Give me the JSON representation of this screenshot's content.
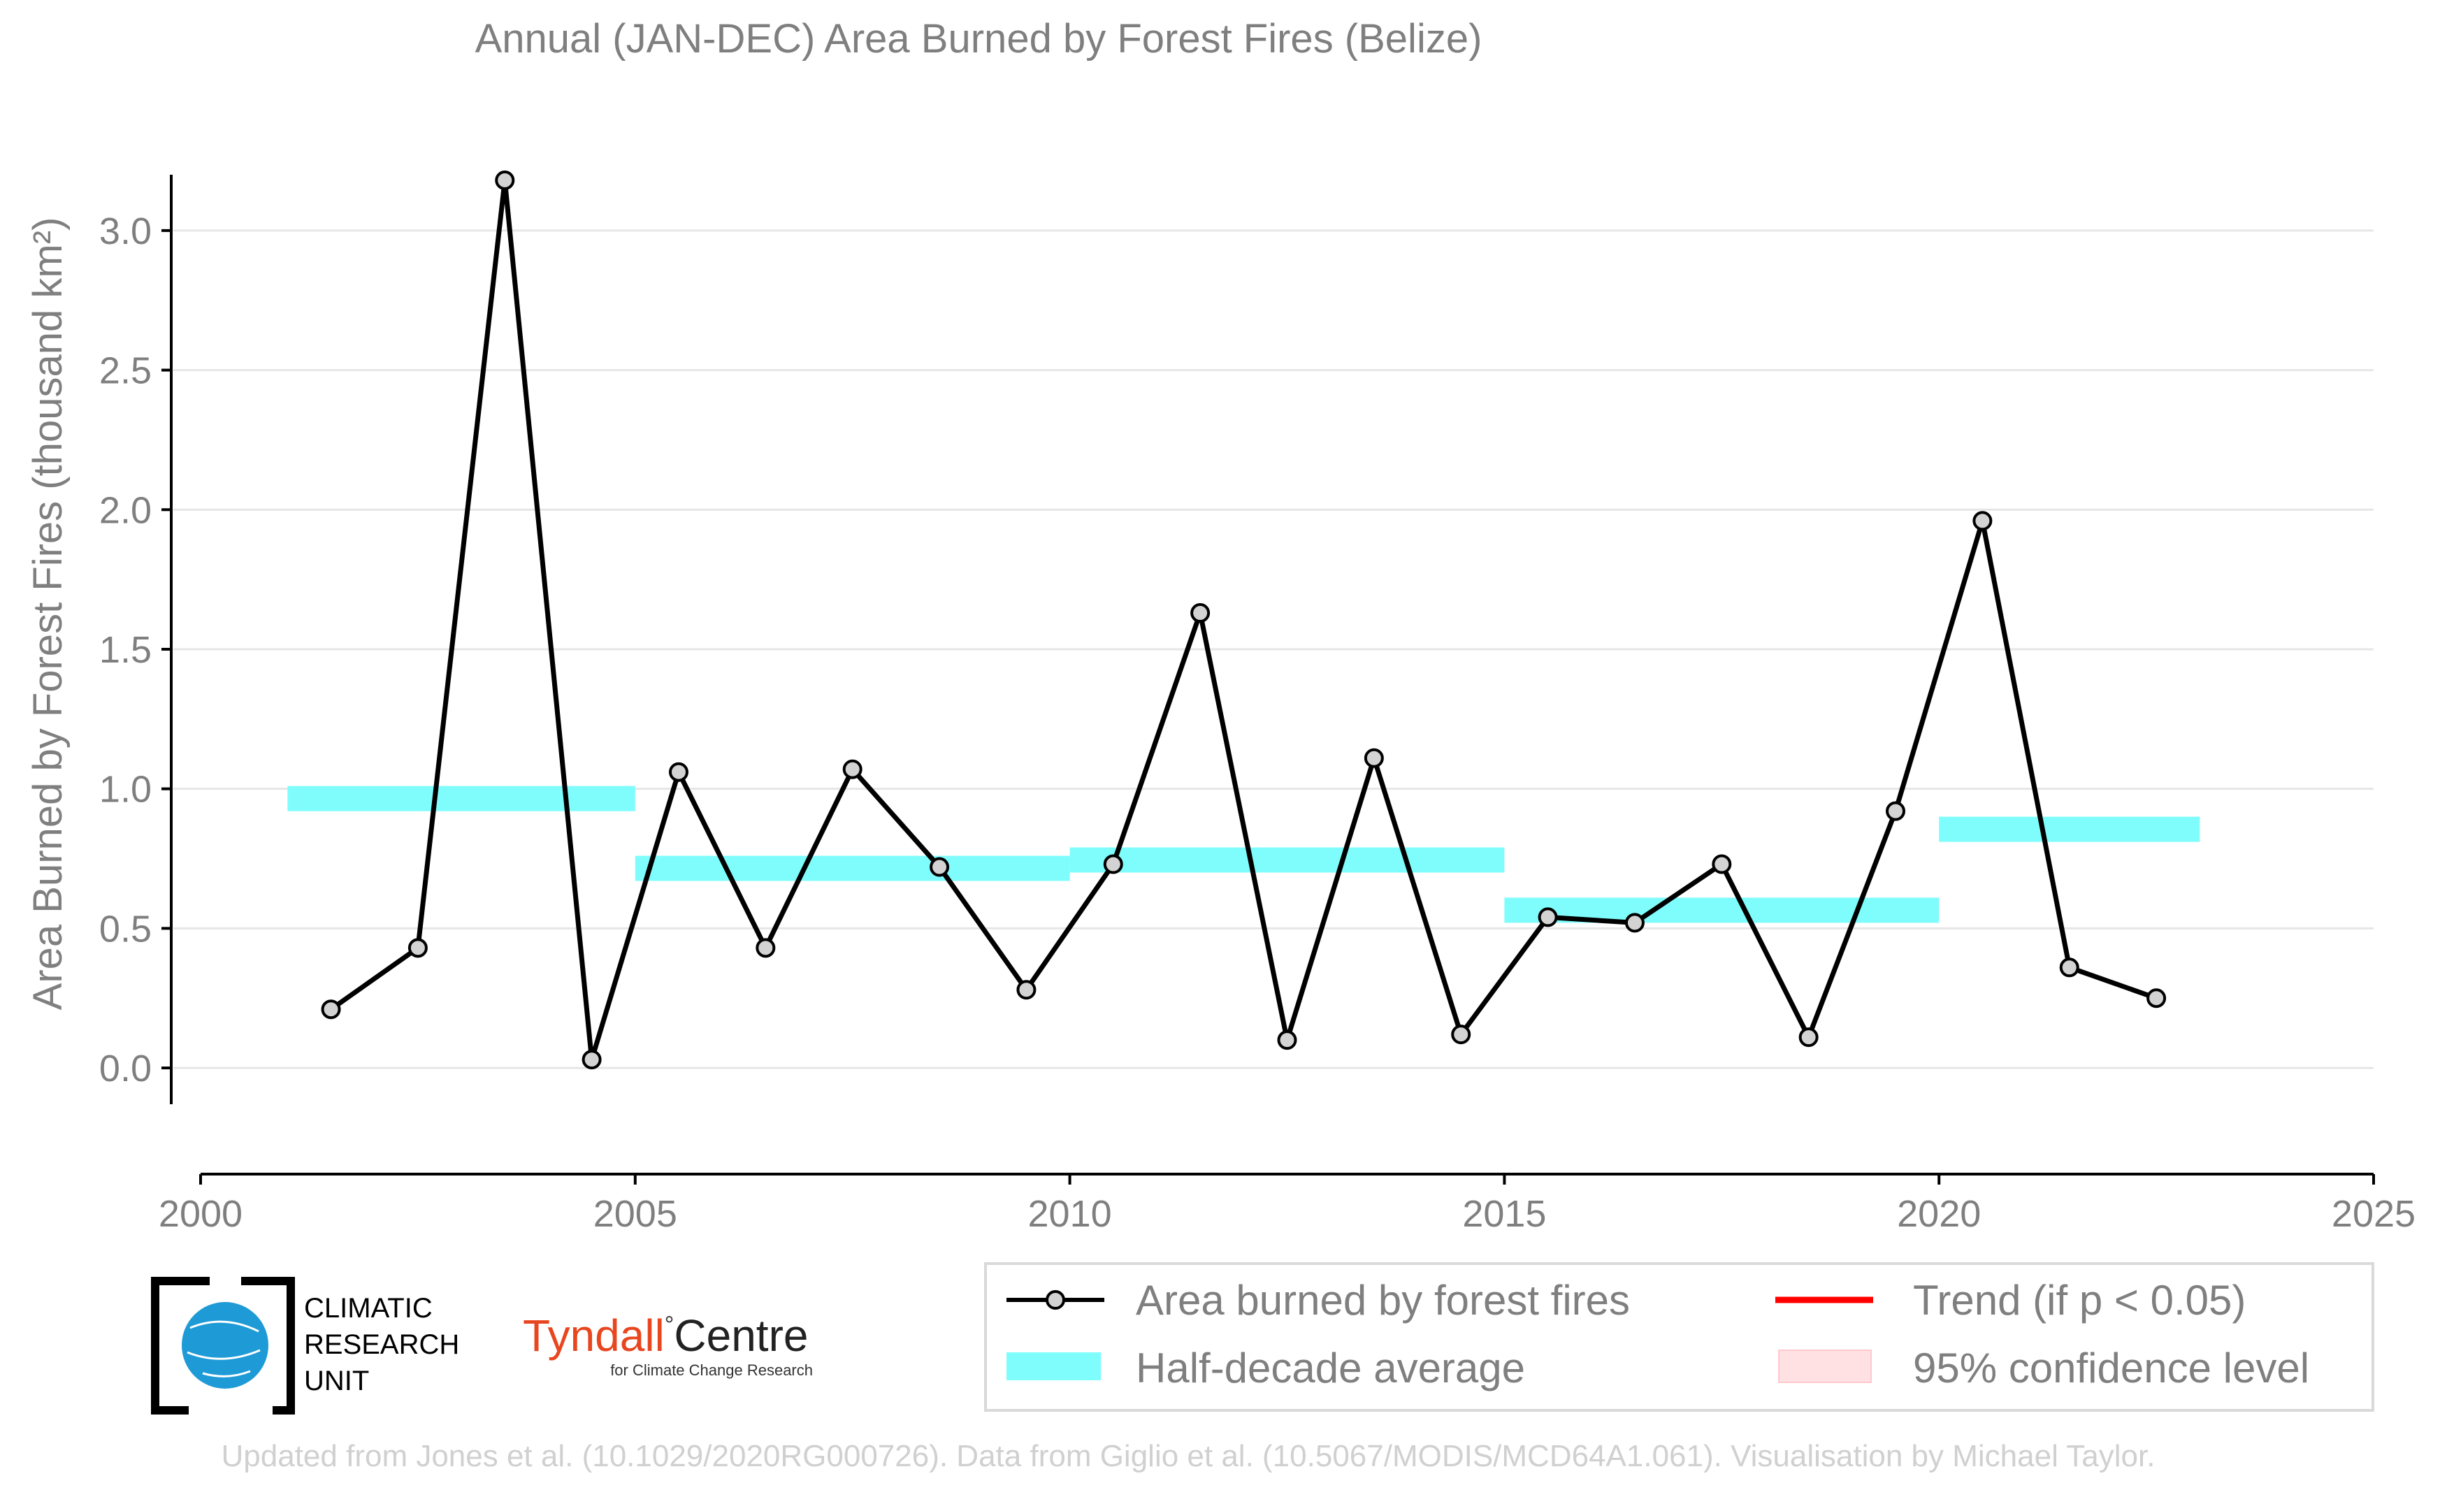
{
  "chart_data": {
    "type": "line",
    "title": "Annual (JAN-DEC) Area Burned by Forest Fires (Belize)",
    "ylabel": "Area Burned by Forest Fires (thousand km²)",
    "xlim": [
      2000,
      2025
    ],
    "ylim": [
      -0.13,
      3.2
    ],
    "x_ticks": [
      2000,
      2005,
      2010,
      2015,
      2020,
      2025
    ],
    "y_ticks": [
      0.0,
      0.5,
      1.0,
      1.5,
      2.0,
      2.5,
      3.0
    ],
    "y_tick_labels": [
      "0.0",
      "0.5",
      "1.0",
      "1.5",
      "2.0",
      "2.5",
      "3.0"
    ],
    "grid": true,
    "series": [
      {
        "name": "Area burned by forest fires",
        "color": "#000000",
        "marker_fill": "#d3d3d3",
        "x": [
          2001.5,
          2002.5,
          2003.5,
          2004.5,
          2005.5,
          2006.5,
          2007.5,
          2008.5,
          2009.5,
          2010.5,
          2011.5,
          2012.5,
          2013.5,
          2014.5,
          2015.5,
          2016.5,
          2017.5,
          2018.5,
          2019.5,
          2020.5,
          2021.5,
          2022.5
        ],
        "values": [
          0.21,
          0.43,
          3.18,
          0.03,
          1.06,
          0.43,
          1.07,
          0.72,
          0.28,
          0.73,
          1.63,
          0.1,
          1.11,
          0.12,
          0.54,
          0.52,
          0.73,
          0.11,
          0.92,
          1.96,
          0.36,
          0.25
        ]
      }
    ],
    "half_decade_averages": {
      "name": "Half-decade average",
      "color": "#7ffdfd",
      "segments": [
        {
          "x0": 2001,
          "x1": 2005,
          "y0": 0.92,
          "y1": 1.01
        },
        {
          "x0": 2005,
          "x1": 2010,
          "y0": 0.67,
          "y1": 0.76
        },
        {
          "x0": 2010,
          "x1": 2015,
          "y0": 0.7,
          "y1": 0.79
        },
        {
          "x0": 2015,
          "x1": 2020,
          "y0": 0.52,
          "y1": 0.61
        },
        {
          "x0": 2020,
          "x1": 2023,
          "y0": 0.81,
          "y1": 0.9
        }
      ]
    },
    "legend": {
      "placement": "bottom-right",
      "entries": [
        {
          "label": "Area burned by forest fires",
          "kind": "line-marker",
          "color": "#000000"
        },
        {
          "label": "Trend (if p < 0.05)",
          "kind": "line",
          "color": "#ff0000"
        },
        {
          "label": "Half-decade average",
          "kind": "band",
          "color": "#7ffdfd"
        },
        {
          "label": "95% confidence level",
          "kind": "band",
          "color": "#ffe0e3"
        }
      ]
    }
  },
  "logos": {
    "cru": [
      "CLIMATIC",
      "RESEARCH",
      "UNIT"
    ],
    "tyndall_main_a": "Tyndall",
    "tyndall_degree": "°",
    "tyndall_main_b": "Centre",
    "tyndall_sub": "for Climate Change Research"
  },
  "credit": "Updated from Jones et al. (10.1029/2020RG000726). Data from Giglio et al. (10.5067/MODIS/MCD64A1.061). Visualisation by Michael Taylor."
}
